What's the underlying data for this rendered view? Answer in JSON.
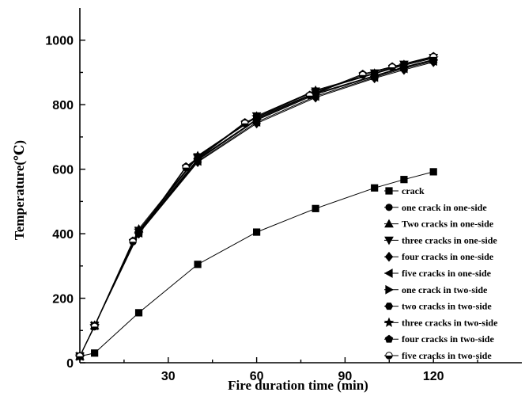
{
  "chart_data": {
    "type": "line",
    "title": "",
    "xlabel": "Fire duration time (min)",
    "ylabel": "Temperature(℃)",
    "xlim": [
      0,
      150
    ],
    "ylim": [
      0,
      1100
    ],
    "x_ticks": [
      30,
      60,
      90,
      120
    ],
    "y_ticks": [
      0,
      200,
      400,
      600,
      800,
      1000
    ],
    "x_tick_labels": [
      "30",
      "60",
      "90",
      "120"
    ],
    "y_tick_labels": [
      "0",
      "200",
      "400",
      "600",
      "800",
      "1000"
    ],
    "grid": false,
    "legend_position": "bottom-right",
    "series": [
      {
        "name": "crack",
        "marker": "square",
        "x": [
          0,
          5,
          20,
          40,
          60,
          80,
          100,
          110,
          120
        ],
        "y": [
          20,
          30,
          155,
          305,
          405,
          478,
          542,
          568,
          592
        ]
      },
      {
        "name": "one crack in one-side",
        "marker": "circle",
        "x": [
          0,
          5,
          20,
          40,
          60,
          80,
          100,
          110,
          120
        ],
        "y": [
          20,
          115,
          405,
          628,
          752,
          832,
          888,
          915,
          938
        ]
      },
      {
        "name": "Two cracks in one-side",
        "marker": "triangle-up",
        "x": [
          0,
          5,
          20,
          40,
          60,
          80,
          100,
          110,
          120
        ],
        "y": [
          20,
          115,
          415,
          642,
          765,
          845,
          898,
          925,
          948
        ]
      },
      {
        "name": "three cracks in one-side",
        "marker": "triangle-down",
        "x": [
          0,
          5,
          20,
          40,
          60,
          80,
          100,
          110,
          120
        ],
        "y": [
          20,
          115,
          410,
          638,
          765,
          842,
          898,
          925,
          946
        ]
      },
      {
        "name": "four cracks in one-side",
        "marker": "diamond",
        "x": [
          0,
          5,
          20,
          40,
          60,
          80,
          100,
          110,
          120
        ],
        "y": [
          20,
          115,
          400,
          622,
          742,
          822,
          882,
          908,
          932
        ]
      },
      {
        "name": "five cracks in one-side",
        "marker": "triangle-left",
        "x": [
          0,
          5,
          20,
          40,
          60,
          80,
          100,
          110,
          120
        ],
        "y": [
          20,
          115,
          402,
          625,
          746,
          826,
          885,
          912,
          935
        ]
      },
      {
        "name": "one crack in two-side",
        "marker": "triangle-right",
        "x": [
          0,
          5,
          20,
          40,
          60,
          80,
          100,
          110,
          120
        ],
        "y": [
          20,
          115,
          408,
          632,
          755,
          835,
          890,
          917,
          940
        ]
      },
      {
        "name": "two cracks in two-side",
        "marker": "hexagon",
        "x": [
          0,
          5,
          20,
          40,
          60,
          80,
          100,
          110,
          120
        ],
        "y": [
          20,
          115,
          405,
          630,
          752,
          832,
          888,
          915,
          938
        ]
      },
      {
        "name": "three cracks in two-side",
        "marker": "star",
        "x": [
          0,
          5,
          20,
          40,
          60,
          80,
          100,
          110,
          120
        ],
        "y": [
          20,
          115,
          410,
          640,
          762,
          842,
          896,
          922,
          944
        ]
      },
      {
        "name": "four cracks in two-side",
        "marker": "pentagon",
        "x": [
          0,
          5,
          18,
          36,
          56,
          78,
          96,
          106,
          120
        ],
        "y": [
          20,
          115,
          378,
          608,
          745,
          830,
          895,
          918,
          950
        ]
      },
      {
        "name": "five cracks in two-side",
        "marker": "half-circle",
        "x": [
          0,
          5,
          18,
          36,
          56,
          78,
          96,
          106,
          120
        ],
        "y": [
          20,
          112,
          375,
          605,
          742,
          828,
          892,
          916,
          948
        ]
      }
    ]
  }
}
